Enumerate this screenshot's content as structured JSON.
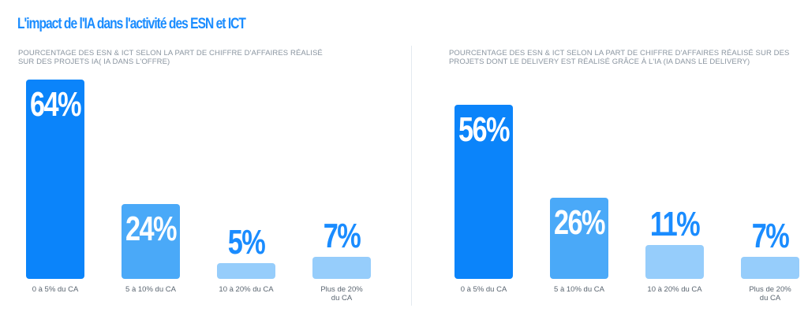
{
  "title": "L'impact de l'IA dans l'activité des ESN et ICT",
  "colors": {
    "title": "#1a8cff",
    "bar_dark": "#0b84fa",
    "bar_mid": "#4aa9f8",
    "bar_light": "#96cdfb",
    "value_text_on_bar": "#ffffff",
    "value_text_above": "#1a8cff"
  },
  "chart_data": [
    {
      "type": "bar",
      "title": "POURCENTAGE DES ESN & ICT SELON LA PART DE CHIFFRE D'AFFAIRES RÉALISÉ SUR DES PROJETS IA( IA DANS L'OFFRE)",
      "categories": [
        "0 à 5% du CA",
        "5 à 10% du CA",
        "10 à 20% du CA",
        "Plus de 20% du CA"
      ],
      "values": [
        64,
        24,
        5,
        7
      ],
      "value_labels": [
        "64%",
        "24%",
        "5%",
        "7%"
      ],
      "ylim": [
        0,
        64
      ],
      "xlabel": "",
      "ylabel": "",
      "grid": false
    },
    {
      "type": "bar",
      "title": "POURCENTAGE DES ESN & ICT SELON LA PART DE CHIFFRE D'AFFAIRES RÉALISÉ SUR DES PROJETS DONT LE DELIVERY EST RÉALISÉ GRÂCE À L'IA (IA DANS LE DELIVERY)",
      "categories": [
        "0 à 5% du CA",
        "5 à 10% du CA",
        "10 à 20% du CA",
        "Plus de 20% du CA"
      ],
      "values": [
        56,
        26,
        11,
        7
      ],
      "value_labels": [
        "56%",
        "26%",
        "11%",
        "7%"
      ],
      "ylim": [
        0,
        64
      ],
      "xlabel": "",
      "ylabel": "",
      "grid": false
    }
  ]
}
